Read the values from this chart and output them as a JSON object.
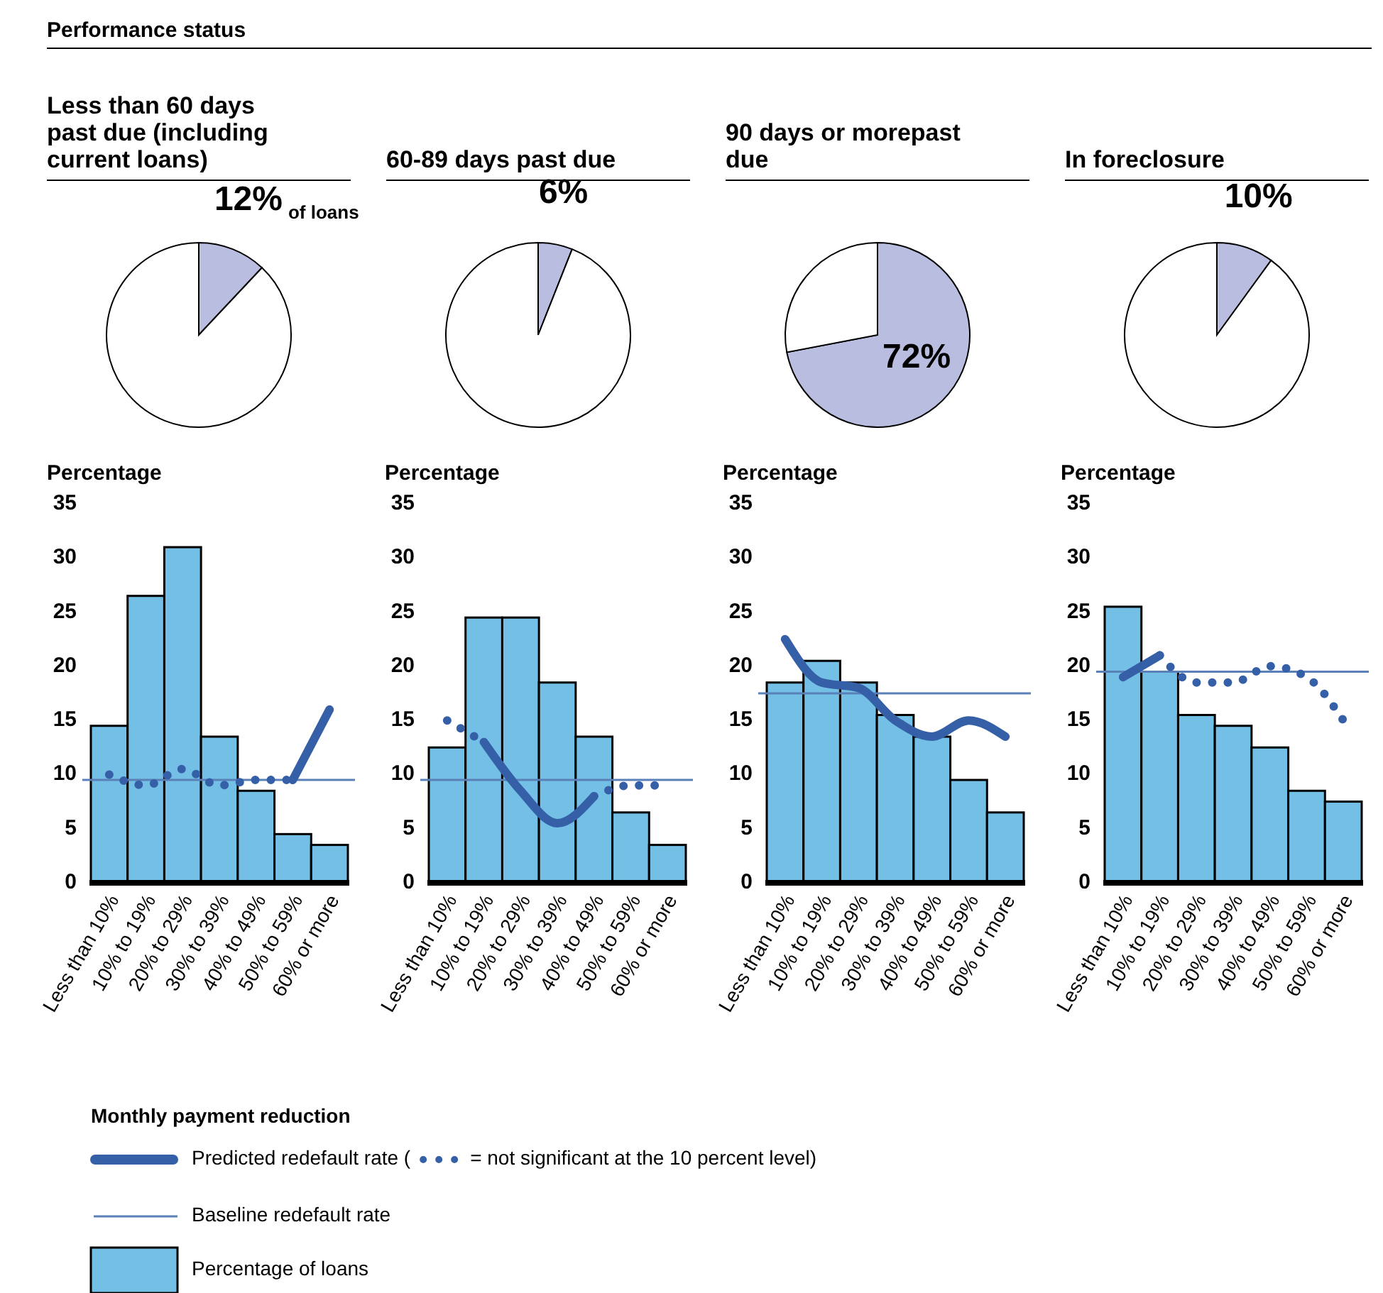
{
  "chart_data": [
    {
      "type": "other",
      "title": "Performance status"
    },
    {
      "type": "pie",
      "title": "Less than 60 days past due (including current loans)",
      "categories": [
        null,
        null
      ],
      "values": [
        12,
        88
      ],
      "colors": [
        "#b9bde0",
        "#ffffff"
      ],
      "value_labels": [
        "12%",
        null
      ],
      "annotations": [
        "of loans"
      ]
    },
    {
      "type": "pie",
      "title": "60-89 days past due",
      "categories": [
        null,
        null
      ],
      "values": [
        6,
        94
      ],
      "colors": [
        "#b9bde0",
        "#ffffff"
      ],
      "value_labels": [
        "6%",
        null
      ]
    },
    {
      "type": "pie",
      "title": "90 days or morepast due",
      "categories": [
        null,
        null
      ],
      "values": [
        72,
        28
      ],
      "colors": [
        "#b9bde0",
        "#ffffff"
      ],
      "value_labels": [
        "72%",
        null
      ]
    },
    {
      "type": "pie",
      "title": "In foreclosure",
      "categories": [
        null,
        null
      ],
      "values": [
        10,
        90
      ],
      "colors": [
        "#b9bde0",
        "#ffffff"
      ],
      "value_labels": [
        "10%",
        null
      ]
    },
    {
      "type": "bar",
      "ylabel": "Percentage",
      "xlabel": "Monthly payment reduction",
      "legend": "bottom",
      "categories": [
        "Less than 10%",
        "10% to 19%",
        "20% to 29%",
        "30% to 39%",
        "40% to 49%",
        "50% to 59%",
        "60% or more"
      ],
      "ylim": [
        0,
        35
      ],
      "yticks": [
        0,
        5,
        10,
        15,
        20,
        25,
        30,
        35
      ],
      "series": [
        {
          "name": "Percentage of loans",
          "color": "#74bfe6",
          "values": [
            14.5,
            26.5,
            31,
            13.5,
            8.5,
            4.5,
            3.5
          ]
        },
        {
          "type": "line",
          "name": "Predicted redefault rate (",
          "color": "#3560a8",
          "line_style": "solid",
          "values": [
            null,
            null,
            null,
            null,
            null,
            9.5,
            16
          ]
        },
        {
          "type": "line",
          "name": "= not significant at the 10 percent level)",
          "color": "#3560a8",
          "line_style": "dotted",
          "values": [
            10,
            9,
            10.5,
            9,
            9.5,
            9.5,
            null
          ]
        }
      ],
      "ref_lines": [
        {
          "axis": "y",
          "value": 9.5,
          "label": "Baseline redefault rate",
          "color": "#5a80b8"
        }
      ]
    },
    {
      "type": "bar",
      "ylabel": "Percentage",
      "categories": [
        "Less than 10%",
        "10% to 19%",
        "20% to 29%",
        "30% to 39%",
        "40% to 49%",
        "50% to 59%",
        "60% or more"
      ],
      "ylim": [
        0,
        35
      ],
      "yticks": [
        0,
        5,
        10,
        15,
        20,
        25,
        30,
        35
      ],
      "series": [
        {
          "color": "#74bfe6",
          "values": [
            12.5,
            24.5,
            24.5,
            18.5,
            13.5,
            6.5,
            3.5
          ]
        },
        {
          "type": "line",
          "color": "#3560a8",
          "line_style": "solid",
          "values": [
            null,
            13,
            8.5,
            5.5,
            8,
            null,
            null
          ]
        },
        {
          "type": "line",
          "color": "#3560a8",
          "line_style": "dotted",
          "values": [
            15,
            13,
            null,
            null,
            8,
            9,
            9
          ]
        }
      ],
      "ref_lines": [
        {
          "axis": "y",
          "value": 9.5,
          "color": "#5a80b8"
        }
      ]
    },
    {
      "type": "bar",
      "ylabel": "Percentage",
      "categories": [
        "Less than 10%",
        "10% to 19%",
        "20% to 29%",
        "30% to 39%",
        "40% to 49%",
        "50% to 59%",
        "60% or more"
      ],
      "ylim": [
        0,
        35
      ],
      "yticks": [
        0,
        5,
        10,
        15,
        20,
        25,
        30,
        35
      ],
      "series": [
        {
          "color": "#74bfe6",
          "values": [
            18.5,
            20.5,
            18.5,
            15.5,
            13.5,
            9.5,
            6.5
          ]
        },
        {
          "type": "line",
          "color": "#3560a8",
          "line_style": "solid",
          "values": [
            22.5,
            18.5,
            18,
            15,
            13.5,
            15,
            13.5
          ]
        }
      ],
      "ref_lines": [
        {
          "axis": "y",
          "value": 17.5,
          "color": "#5a80b8"
        }
      ]
    },
    {
      "type": "bar",
      "ylabel": "Percentage",
      "categories": [
        "Less than 10%",
        "10% to 19%",
        "20% to 29%",
        "30% to 39%",
        "40% to 49%",
        "50% to 59%",
        "60% or more"
      ],
      "ylim": [
        0,
        35
      ],
      "yticks": [
        0,
        5,
        10,
        15,
        20,
        25,
        30,
        35
      ],
      "series": [
        {
          "color": "#74bfe6",
          "values": [
            25.5,
            19.5,
            15.5,
            14.5,
            12.5,
            8.5,
            7.5
          ]
        },
        {
          "type": "line",
          "color": "#3560a8",
          "line_style": "solid",
          "values": [
            19,
            21,
            null,
            null,
            null,
            null,
            null
          ]
        },
        {
          "type": "line",
          "color": "#3560a8",
          "line_style": "dotted",
          "values": [
            null,
            21,
            18.5,
            18.5,
            20,
            19,
            15
          ]
        }
      ],
      "ref_lines": [
        {
          "axis": "y",
          "value": 19.5,
          "color": "#5a80b8"
        }
      ]
    }
  ]
}
